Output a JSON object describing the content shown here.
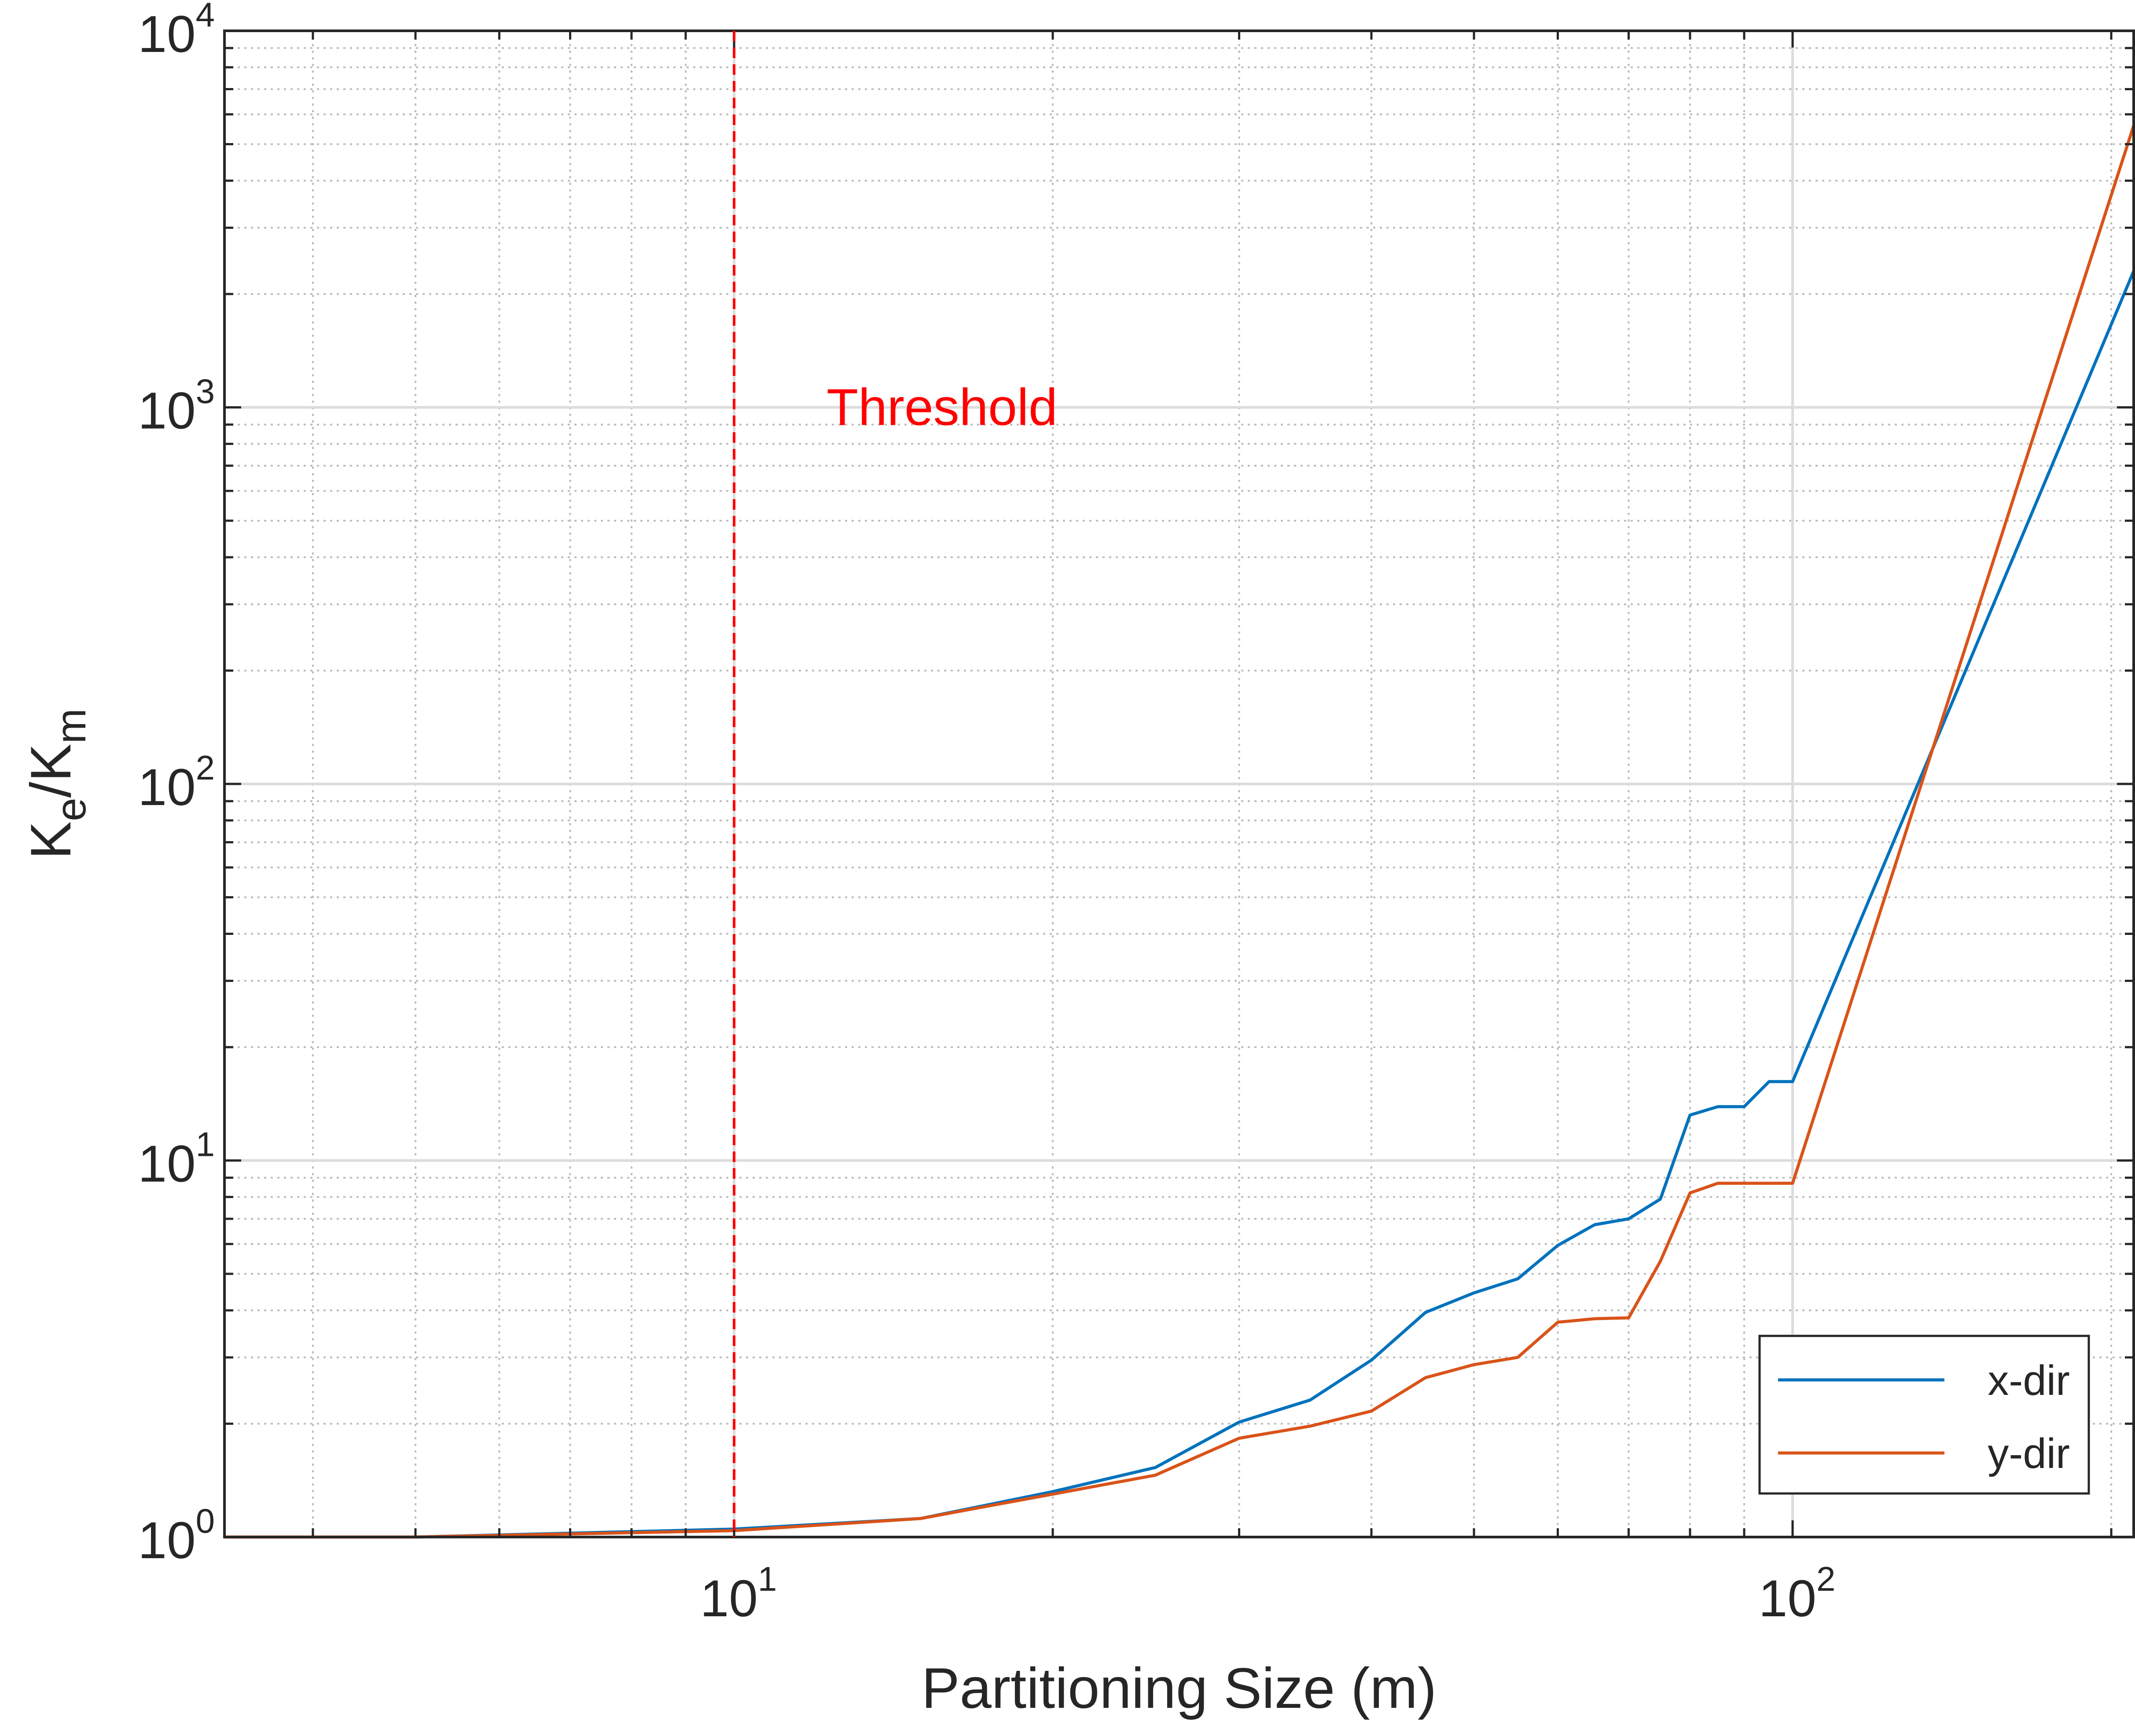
{
  "chart_data": {
    "type": "line",
    "xscale": "log",
    "yscale": "log",
    "xlim": [
      3.3,
      210
    ],
    "ylim": [
      1,
      10000
    ],
    "grid": true,
    "minor_grid": true,
    "xlabel": "Partitioning Size (m)",
    "ylabel": {
      "base": "K",
      "sub1": "e",
      "sep": "/K",
      "sub2": "m"
    },
    "xticks": [
      {
        "value": 10,
        "base": "10",
        "exp": "1"
      },
      {
        "value": 100,
        "base": "10",
        "exp": "2"
      }
    ],
    "yticks": [
      {
        "value": 1,
        "base": "10",
        "exp": "0"
      },
      {
        "value": 10,
        "base": "10",
        "exp": "1"
      },
      {
        "value": 100,
        "base": "10",
        "exp": "2"
      },
      {
        "value": 1000,
        "base": "10",
        "exp": "3"
      },
      {
        "value": 10000,
        "base": "10",
        "exp": "4"
      }
    ],
    "threshold": {
      "x": 10,
      "label": "Threshold",
      "color": "#ff0000",
      "style": "dashed"
    },
    "legend_position": "bottom-right",
    "series": [
      {
        "name": "x-dir",
        "color": "#0072bd",
        "x": [
          3.3,
          5,
          10,
          15,
          20,
          25,
          30,
          35,
          40,
          45,
          50,
          55,
          60,
          65,
          70,
          75,
          80,
          85,
          90,
          95,
          100,
          210
        ],
        "y": [
          1.0,
          1.0,
          1.05,
          1.12,
          1.32,
          1.53,
          2.02,
          2.31,
          2.95,
          3.95,
          4.45,
          4.85,
          5.95,
          6.75,
          7.0,
          7.9,
          13.2,
          13.9,
          13.9,
          16.2,
          16.2,
          2300
        ]
      },
      {
        "name": "y-dir",
        "color": "#d95319",
        "x": [
          3.3,
          5,
          10,
          15,
          20,
          25,
          30,
          35,
          40,
          45,
          50,
          55,
          60,
          65,
          70,
          75,
          80,
          85,
          90,
          95,
          100,
          210
        ],
        "y": [
          1.0,
          1.0,
          1.04,
          1.12,
          1.3,
          1.46,
          1.83,
          1.97,
          2.16,
          2.65,
          2.87,
          3.0,
          3.72,
          3.8,
          3.82,
          5.4,
          8.2,
          8.7,
          8.7,
          8.7,
          8.7,
          5600
        ]
      }
    ]
  }
}
